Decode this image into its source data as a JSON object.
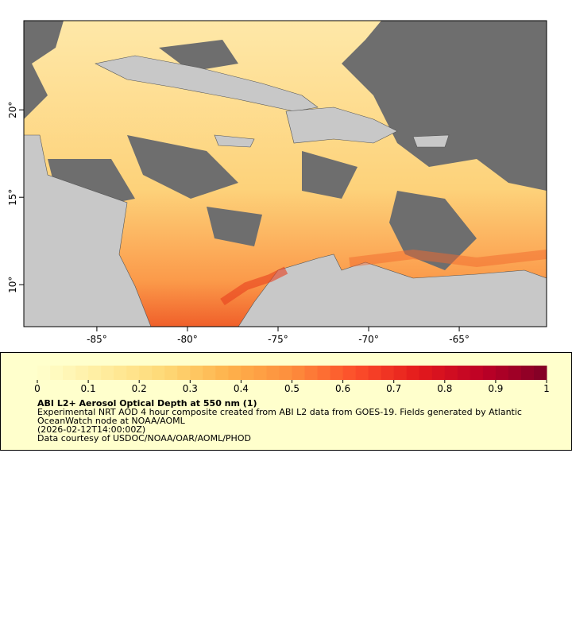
{
  "map": {
    "xlim": [
      -89.03,
      -60.18
    ],
    "ylim": [
      7.6,
      25.1
    ],
    "xticks": [
      {
        "value": -85,
        "label": "-85°"
      },
      {
        "value": -80,
        "label": "-80°"
      },
      {
        "value": -75,
        "label": "-75°"
      },
      {
        "value": -70,
        "label": "-70°"
      },
      {
        "value": -65,
        "label": "-65°"
      }
    ],
    "yticks": [
      {
        "value": 10,
        "label": "10°"
      },
      {
        "value": 15,
        "label": "15°"
      },
      {
        "value": 20,
        "label": "20°"
      }
    ]
  },
  "colorbar": {
    "lim": [
      0,
      1
    ],
    "ticks": [
      0,
      0.1,
      0.2,
      0.3,
      0.4,
      0.5,
      0.6,
      0.7,
      0.8,
      0.9,
      1
    ],
    "colors": [
      "#ffffcc",
      "#ffeda0",
      "#fed976",
      "#feb24c",
      "#fd8d3c",
      "#fc4e2a",
      "#e31a1c",
      "#bd0026",
      "#800026"
    ]
  },
  "legend": {
    "title": "ABI L2+ Aerosol Optical Depth at 550 nm (1)",
    "lines": [
      "Experimental NRT AOD 4 hour composite created from ABI L2 data from GOES-19. Fields generated by Atlantic",
      "OceanWatch node at NOAA/AOML",
      "(2026-02-12T14:00:00Z)",
      "Data courtesy of USDOC/NOAA/OAR/AOML/PHOD"
    ]
  }
}
